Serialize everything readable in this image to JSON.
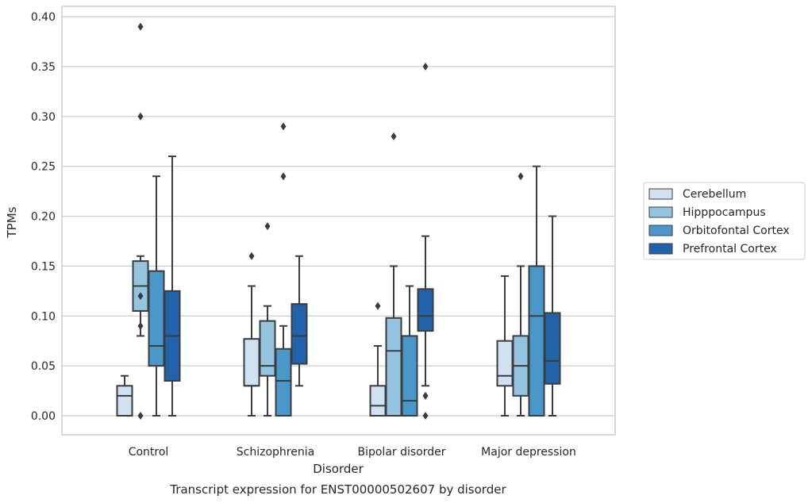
{
  "chart_data": {
    "type": "box",
    "xlabel": "Disorder",
    "ylabel": "TPMs",
    "caption": "Transcript expression for ENST00000502607 by disorder",
    "ylim": [
      -0.019,
      0.41
    ],
    "yticks": [
      0.0,
      0.05,
      0.1,
      0.15,
      0.2,
      0.25,
      0.3,
      0.35,
      0.4
    ],
    "ytick_labels": [
      "0.00",
      "0.05",
      "0.10",
      "0.15",
      "0.20",
      "0.25",
      "0.30",
      "0.35",
      "0.40"
    ],
    "grid": "horizontal",
    "legend_position": "right",
    "categories": [
      "Control",
      "Schizophrenia",
      "Bipolar disorder",
      "Major depression"
    ],
    "series": [
      {
        "name": "Cerebellum",
        "color": "#d0e1f2",
        "boxes": [
          {
            "whisker_low": 0.0,
            "q1": 0.0,
            "median": 0.02,
            "q3": 0.03,
            "whisker_high": 0.04,
            "outliers": []
          },
          {
            "whisker_low": 0.0,
            "q1": 0.03,
            "median": 0.03,
            "q3": 0.077,
            "whisker_high": 0.13,
            "outliers": [
              0.16
            ]
          },
          {
            "whisker_low": 0.0,
            "q1": 0.0,
            "median": 0.01,
            "q3": 0.03,
            "whisker_high": 0.07,
            "outliers": [
              0.11
            ]
          },
          {
            "whisker_low": 0.0,
            "q1": 0.03,
            "median": 0.04,
            "q3": 0.075,
            "whisker_high": 0.14,
            "outliers": []
          }
        ]
      },
      {
        "name": "Hipppocampus",
        "color": "#94c4df",
        "boxes": [
          {
            "whisker_low": 0.08,
            "q1": 0.105,
            "median": 0.13,
            "q3": 0.155,
            "whisker_high": 0.16,
            "outliers": [
              0.09,
              0.12,
              0.0,
              0.3,
              0.39
            ]
          },
          {
            "whisker_low": 0.0,
            "q1": 0.04,
            "median": 0.05,
            "q3": 0.095,
            "whisker_high": 0.11,
            "outliers": [
              0.19
            ]
          },
          {
            "whisker_low": 0.0,
            "q1": 0.0,
            "median": 0.065,
            "q3": 0.098,
            "whisker_high": 0.15,
            "outliers": [
              0.28
            ]
          },
          {
            "whisker_low": 0.0,
            "q1": 0.02,
            "median": 0.05,
            "q3": 0.08,
            "whisker_high": 0.15,
            "outliers": [
              0.24
            ]
          }
        ]
      },
      {
        "name": "Orbitofontal Cortex",
        "color": "#4a98c9",
        "boxes": [
          {
            "whisker_low": 0.0,
            "q1": 0.05,
            "median": 0.07,
            "q3": 0.145,
            "whisker_high": 0.24,
            "outliers": []
          },
          {
            "whisker_low": 0.0,
            "q1": 0.0,
            "median": 0.035,
            "q3": 0.067,
            "whisker_high": 0.09,
            "outliers": [
              0.24,
              0.29
            ]
          },
          {
            "whisker_low": 0.0,
            "q1": 0.0,
            "median": 0.015,
            "q3": 0.08,
            "whisker_high": 0.13,
            "outliers": []
          },
          {
            "whisker_low": 0.0,
            "q1": 0.0,
            "median": 0.1,
            "q3": 0.15,
            "whisker_high": 0.25,
            "outliers": []
          }
        ]
      },
      {
        "name": "Prefrontal Cortex",
        "color": "#2163aa",
        "boxes": [
          {
            "whisker_low": 0.0,
            "q1": 0.035,
            "median": 0.08,
            "q3": 0.125,
            "whisker_high": 0.26,
            "outliers": []
          },
          {
            "whisker_low": 0.03,
            "q1": 0.052,
            "median": 0.08,
            "q3": 0.112,
            "whisker_high": 0.16,
            "outliers": []
          },
          {
            "whisker_low": 0.03,
            "q1": 0.085,
            "median": 0.1,
            "q3": 0.127,
            "whisker_high": 0.18,
            "outliers": [
              0.35,
              0.02,
              0.0
            ]
          },
          {
            "whisker_low": 0.0,
            "q1": 0.032,
            "median": 0.055,
            "q3": 0.103,
            "whisker_high": 0.2,
            "outliers": []
          }
        ]
      }
    ]
  }
}
